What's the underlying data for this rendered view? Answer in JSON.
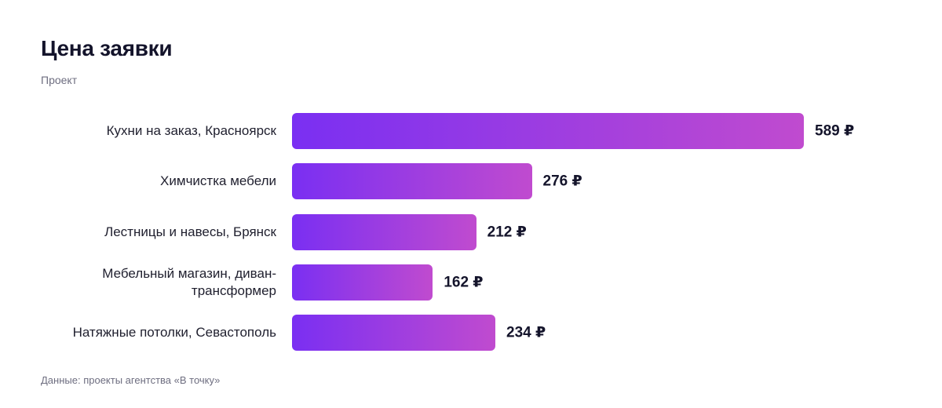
{
  "chart_data": {
    "type": "bar",
    "orientation": "horizontal",
    "title": "Цена заявки",
    "subtitle": "Проект",
    "source": "Данные: проекты агентства «В точку»",
    "categories": [
      "Кухни на заказ, Красноярск",
      "Химчистка мебели",
      "Лестницы и навесы, Брянск",
      "Мебельный магазин, диван-трансформер",
      "Натяжные потолки, Севастополь"
    ],
    "values": [
      589,
      276,
      212,
      162,
      234
    ],
    "value_labels": [
      "589 ₽",
      "276 ₽",
      "212 ₽",
      "162 ₽",
      "234 ₽"
    ],
    "gradient": [
      "#7a2ff2",
      "#c04bcf"
    ]
  }
}
